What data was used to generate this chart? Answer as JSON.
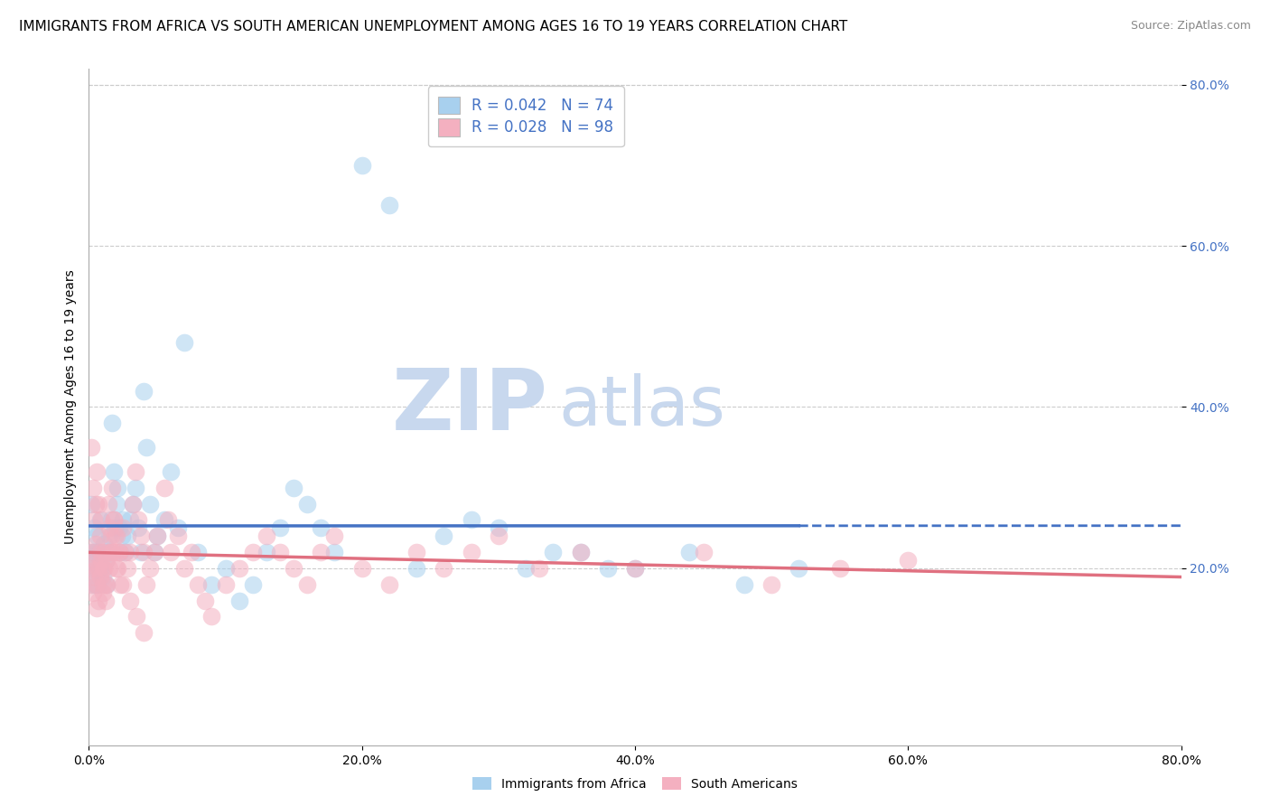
{
  "title": "IMMIGRANTS FROM AFRICA VS SOUTH AMERICAN UNEMPLOYMENT AMONG AGES 16 TO 19 YEARS CORRELATION CHART",
  "source": "Source: ZipAtlas.com",
  "ylabel": "Unemployment Among Ages 16 to 19 years",
  "series": [
    {
      "name": "Immigrants from Africa",
      "R": 0.042,
      "N": 74,
      "dot_color": "#a8d0ee",
      "line_color": "#4472c4",
      "line_style": "--",
      "x": [
        0.001,
        0.002,
        0.002,
        0.003,
        0.003,
        0.004,
        0.004,
        0.005,
        0.005,
        0.006,
        0.006,
        0.007,
        0.007,
        0.008,
        0.008,
        0.009,
        0.01,
        0.01,
        0.011,
        0.012,
        0.013,
        0.014,
        0.015,
        0.016,
        0.017,
        0.018,
        0.019,
        0.02,
        0.021,
        0.022,
        0.023,
        0.024,
        0.025,
        0.027,
        0.028,
        0.03,
        0.032,
        0.034,
        0.036,
        0.038,
        0.04,
        0.042,
        0.045,
        0.048,
        0.05,
        0.055,
        0.06,
        0.065,
        0.07,
        0.08,
        0.09,
        0.1,
        0.11,
        0.12,
        0.13,
        0.14,
        0.15,
        0.16,
        0.17,
        0.18,
        0.2,
        0.22,
        0.24,
        0.26,
        0.28,
        0.3,
        0.32,
        0.34,
        0.36,
        0.38,
        0.4,
        0.44,
        0.48,
        0.52
      ],
      "y": [
        0.22,
        0.2,
        0.28,
        0.22,
        0.18,
        0.2,
        0.25,
        0.22,
        0.18,
        0.2,
        0.24,
        0.22,
        0.18,
        0.2,
        0.26,
        0.2,
        0.22,
        0.19,
        0.23,
        0.21,
        0.18,
        0.22,
        0.24,
        0.26,
        0.38,
        0.32,
        0.25,
        0.28,
        0.3,
        0.25,
        0.22,
        0.24,
        0.26,
        0.22,
        0.24,
        0.26,
        0.28,
        0.3,
        0.25,
        0.22,
        0.42,
        0.35,
        0.28,
        0.22,
        0.24,
        0.26,
        0.32,
        0.25,
        0.48,
        0.22,
        0.18,
        0.2,
        0.16,
        0.18,
        0.22,
        0.25,
        0.3,
        0.28,
        0.25,
        0.22,
        0.7,
        0.65,
        0.2,
        0.24,
        0.26,
        0.25,
        0.2,
        0.22,
        0.22,
        0.2,
        0.2,
        0.22,
        0.18,
        0.2
      ]
    },
    {
      "name": "South Americans",
      "R": 0.028,
      "N": 98,
      "dot_color": "#f4b0c0",
      "line_color": "#e07080",
      "line_style": "-",
      "x": [
        0.001,
        0.002,
        0.003,
        0.003,
        0.004,
        0.004,
        0.005,
        0.005,
        0.006,
        0.006,
        0.007,
        0.007,
        0.008,
        0.008,
        0.009,
        0.01,
        0.01,
        0.011,
        0.012,
        0.013,
        0.014,
        0.015,
        0.016,
        0.017,
        0.018,
        0.019,
        0.02,
        0.021,
        0.022,
        0.023,
        0.025,
        0.026,
        0.028,
        0.03,
        0.032,
        0.034,
        0.036,
        0.038,
        0.04,
        0.042,
        0.045,
        0.048,
        0.05,
        0.055,
        0.058,
        0.06,
        0.065,
        0.07,
        0.075,
        0.08,
        0.085,
        0.09,
        0.1,
        0.11,
        0.12,
        0.13,
        0.14,
        0.15,
        0.16,
        0.17,
        0.18,
        0.2,
        0.22,
        0.24,
        0.26,
        0.28,
        0.3,
        0.33,
        0.36,
        0.4,
        0.45,
        0.5,
        0.55,
        0.6,
        0.002,
        0.003,
        0.004,
        0.005,
        0.006,
        0.007,
        0.008,
        0.009,
        0.01,
        0.011,
        0.012,
        0.013,
        0.014,
        0.015,
        0.016,
        0.017,
        0.018,
        0.019,
        0.02,
        0.022,
        0.025,
        0.03,
        0.035,
        0.04
      ],
      "y": [
        0.2,
        0.18,
        0.22,
        0.17,
        0.19,
        0.21,
        0.2,
        0.23,
        0.15,
        0.18,
        0.16,
        0.2,
        0.22,
        0.19,
        0.21,
        0.17,
        0.2,
        0.22,
        0.18,
        0.21,
        0.28,
        0.25,
        0.22,
        0.3,
        0.26,
        0.22,
        0.24,
        0.2,
        0.22,
        0.18,
        0.25,
        0.22,
        0.2,
        0.22,
        0.28,
        0.32,
        0.26,
        0.24,
        0.22,
        0.18,
        0.2,
        0.22,
        0.24,
        0.3,
        0.26,
        0.22,
        0.24,
        0.2,
        0.22,
        0.18,
        0.16,
        0.14,
        0.18,
        0.2,
        0.22,
        0.24,
        0.22,
        0.2,
        0.18,
        0.22,
        0.24,
        0.2,
        0.18,
        0.22,
        0.2,
        0.22,
        0.24,
        0.2,
        0.22,
        0.2,
        0.22,
        0.18,
        0.2,
        0.21,
        0.35,
        0.3,
        0.26,
        0.28,
        0.32,
        0.28,
        0.24,
        0.26,
        0.18,
        0.2,
        0.16,
        0.18,
        0.22,
        0.2,
        0.24,
        0.22,
        0.26,
        0.24,
        0.2,
        0.22,
        0.18,
        0.16,
        0.14,
        0.12
      ]
    }
  ],
  "xlim": [
    0.0,
    0.8
  ],
  "ylim": [
    -0.02,
    0.82
  ],
  "xticks": [
    0.0,
    0.2,
    0.4,
    0.6,
    0.8
  ],
  "xticklabels": [
    "0.0%",
    "20.0%",
    "40.0%",
    "60.0%",
    "80.0%"
  ],
  "yticks_right": [
    0.2,
    0.4,
    0.6,
    0.8
  ],
  "yticklabels_right": [
    "20.0%",
    "40.0%",
    "60.0%",
    "80.0%"
  ],
  "grid_color": "#cccccc",
  "watermark_zip": "ZIP",
  "watermark_atlas": "atlas",
  "watermark_color": "#c8d8ee",
  "bg_color": "#ffffff",
  "legend_color": "#4472c4",
  "blue_line_color": "#4472c4",
  "pink_line_color": "#e07080",
  "title_fontsize": 11,
  "source_fontsize": 9,
  "axis_label_fontsize": 10,
  "tick_fontsize": 10,
  "legend_fontsize": 12,
  "dot_size": 200,
  "dot_alpha": 0.55
}
